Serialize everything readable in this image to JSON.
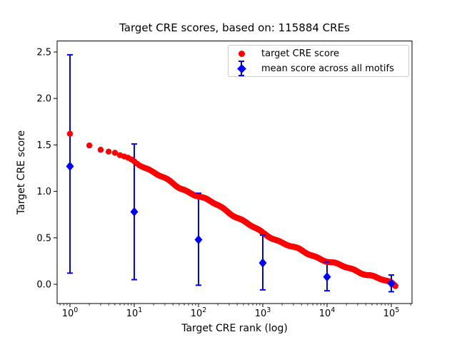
{
  "chart_data": {
    "type": "scatter",
    "title": "Target CRE scores, based on: 115884 CREs",
    "xlabel": "Target CRE rank (log)",
    "ylabel": "Target CRE score",
    "x_scale": "log",
    "n_cres": 115884,
    "x_tick_exponents": [
      0,
      1,
      2,
      3,
      4,
      5
    ],
    "y_ticks": [
      0.0,
      0.5,
      1.0,
      1.5,
      2.0,
      2.5
    ],
    "xlim_log10": [
      -0.2,
      5.32
    ],
    "ylim": [
      -0.21,
      2.62
    ],
    "grid": false,
    "legend_position": "upper right",
    "colors": {
      "target": "#ff0000",
      "mean": "#0000ff",
      "text": "#000000",
      "frame": "#000000",
      "legend_border": "#cccccc"
    },
    "series": [
      {
        "name": "target CRE score",
        "marker": "circle",
        "color": "#ff0000",
        "control_points": [
          [
            1,
            1.62
          ],
          [
            2,
            1.49
          ],
          [
            3,
            1.46
          ],
          [
            4,
            1.43
          ],
          [
            5,
            1.41
          ],
          [
            7,
            1.37
          ],
          [
            10,
            1.32
          ],
          [
            20,
            1.21
          ],
          [
            50,
            1.04
          ],
          [
            100,
            0.95
          ],
          [
            200,
            0.85
          ],
          [
            500,
            0.68
          ],
          [
            1000,
            0.55
          ],
          [
            2000,
            0.45
          ],
          [
            5000,
            0.33
          ],
          [
            10000,
            0.25
          ],
          [
            20000,
            0.18
          ],
          [
            50000,
            0.09
          ],
          [
            100000,
            0.01
          ],
          [
            115884,
            -0.02
          ]
        ]
      },
      {
        "name": "mean score across all motifs",
        "marker": "diamond",
        "color": "#0000ff",
        "points": [
          {
            "x": 1,
            "mean": 1.27,
            "lo": 0.12,
            "hi": 2.47
          },
          {
            "x": 10,
            "mean": 0.78,
            "lo": 0.05,
            "hi": 1.51
          },
          {
            "x": 100,
            "mean": 0.48,
            "lo": -0.01,
            "hi": 0.98
          },
          {
            "x": 1000,
            "mean": 0.23,
            "lo": -0.06,
            "hi": 0.53
          },
          {
            "x": 10000,
            "mean": 0.08,
            "lo": -0.07,
            "hi": 0.24
          },
          {
            "x": 100000,
            "mean": 0.01,
            "lo": -0.08,
            "hi": 0.1
          }
        ]
      }
    ]
  }
}
